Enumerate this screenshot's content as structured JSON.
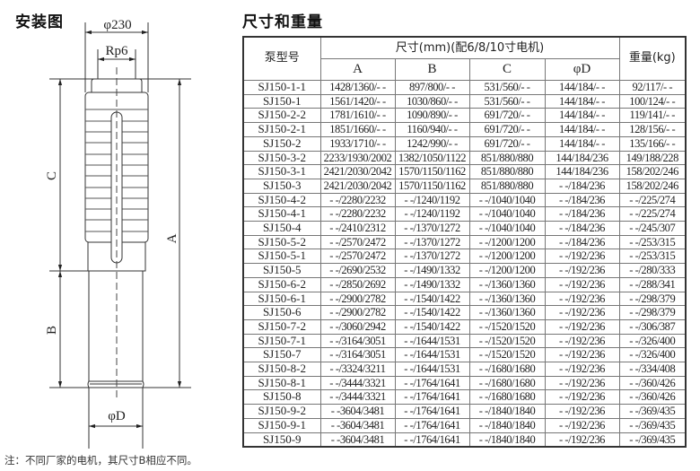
{
  "diagram": {
    "title": "安装图",
    "labels": {
      "outer_diameter": "φ230",
      "thread": "Rp6",
      "dim_a": "A",
      "dim_b": "B",
      "dim_c": "C",
      "motor_diameter": "φD"
    }
  },
  "table": {
    "title": "尺寸和重量",
    "headers": {
      "model": "泵型号",
      "dimensions": "尺寸(mm)(配6/8/10寸电机)",
      "weight": "重量(kg)",
      "sub": [
        "A",
        "B",
        "C",
        "φD"
      ]
    },
    "rows": [
      [
        "SJ150-1-1",
        "1428/1360/- -",
        "897/800/- -",
        "531/560/- -",
        "144/184/- -",
        "92/117/- -"
      ],
      [
        "SJ150-1",
        "1561/1420/- -",
        "1030/860/- -",
        "531/560/- -",
        "144/184/- -",
        "100/124/- -"
      ],
      [
        "SJ150-2-2",
        "1781/1610/- -",
        "1090/890/- -",
        "691/720/- -",
        "144/184/- -",
        "119/141/- -"
      ],
      [
        "SJ150-2-1",
        "1851/1660/- -",
        "1160/940/- -",
        "691/720/- -",
        "144/184/- -",
        "128/156/- -"
      ],
      [
        "SJ150-2",
        "1933/1710/- -",
        "1242/990/- -",
        "691/720/- -",
        "144/184/- -",
        "135/166/- -"
      ],
      [
        "SJ150-3-2",
        "2233/1930/2002",
        "1382/1050/1122",
        "851/880/880",
        "144/184/236",
        "149/188/228"
      ],
      [
        "SJ150-3-1",
        "2421/2030/2042",
        "1570/1150/1162",
        "851/880/880",
        "144/184/236",
        "158/202/246"
      ],
      [
        "SJ150-3",
        "2421/2030/2042",
        "1570/1150/1162",
        "851/880/880",
        "- -/184/236",
        "158/202/246"
      ],
      [
        "SJ150-4-2",
        "- -/2280/2232",
        "- -/1240/1192",
        "- -/1040/1040",
        "- -/184/236",
        "- -/225/274"
      ],
      [
        "SJ150-4-1",
        "- -/2280/2232",
        "- -/1240/1192",
        "- -/1040/1040",
        "- -/184/236",
        "- -/225/274"
      ],
      [
        "SJ150-4",
        "- -/2410/2312",
        "- -/1370/1272",
        "- -/1040/1040",
        "- -/184/236",
        "- -/245/307"
      ],
      [
        "SJ150-5-2",
        "- -/2570/2472",
        "- -/1370/1272",
        "- -/1200/1200",
        "- -/184/236",
        "- -/253/315"
      ],
      [
        "SJ150-5-1",
        "- -/2570/2472",
        "- -/1370/1272",
        "- -/1200/1200",
        "- -/192/236",
        "- -/253/315"
      ],
      [
        "SJ150-5",
        "- -/2690/2532",
        "- -/1490/1332",
        "- -/1200/1200",
        "- -/192/236",
        "- -/280/333"
      ],
      [
        "SJ150-6-2",
        "- -/2850/2692",
        "- -/1490/1332",
        "- -/1360/1360",
        "- -/192/236",
        "- -/288/341"
      ],
      [
        "SJ150-6-1",
        "- -/2900/2782",
        "- -/1540/1422",
        "- -/1360/1360",
        "- -/192/236",
        "- -/298/379"
      ],
      [
        "SJ150-6",
        "- -/2900/2782",
        "- -/1540/1422",
        "- -/1360/1360",
        "- -/192/236",
        "- -/298/379"
      ],
      [
        "SJ150-7-2",
        "- -/3060/2942",
        "- -/1540/1422",
        "- -/1520/1520",
        "- -/192/236",
        "- -/306/387"
      ],
      [
        "SJ150-7-1",
        "- -/3164/3051",
        "- -/1644/1531",
        "- -/1520/1520",
        "- -/192/236",
        "- -/326/400"
      ],
      [
        "SJ150-7",
        "- -/3164/3051",
        "- -/1644/1531",
        "- -/1520/1520",
        "- -/192/236",
        "- -/326/400"
      ],
      [
        "SJ150-8-2",
        "- -/3324/3211",
        "- -/1644/1531",
        "- -/1680/1680",
        "- -/192/236",
        "- -/334/408"
      ],
      [
        "SJ150-8-1",
        "- -/3444/3321",
        "- -/1764/1641",
        "- -/1680/1680",
        "- -/192/236",
        "- -/360/426"
      ],
      [
        "SJ150-8",
        "- -/3444/3321",
        "- -/1764/1641",
        "- -/1680/1680",
        "- -/192/236",
        "- -/360/426"
      ],
      [
        "SJ150-9-2",
        "- -3604/3481",
        "- -/1764/1641",
        "- -/1840/1840",
        "- -/192/236",
        "- -/369/435"
      ],
      [
        "SJ150-9-1",
        "- -3604/3481",
        "- -/1764/1641",
        "- -/1840/1840",
        "- -/192/236",
        "- -/369/435"
      ],
      [
        "SJ150-9",
        "- -3604/3481",
        "- -/1764/1641",
        "- -/1840/1840",
        "- -/192/236",
        "- -/369/435"
      ]
    ]
  },
  "note": "注：不同厂家的电机，其尺寸B相应不同。"
}
